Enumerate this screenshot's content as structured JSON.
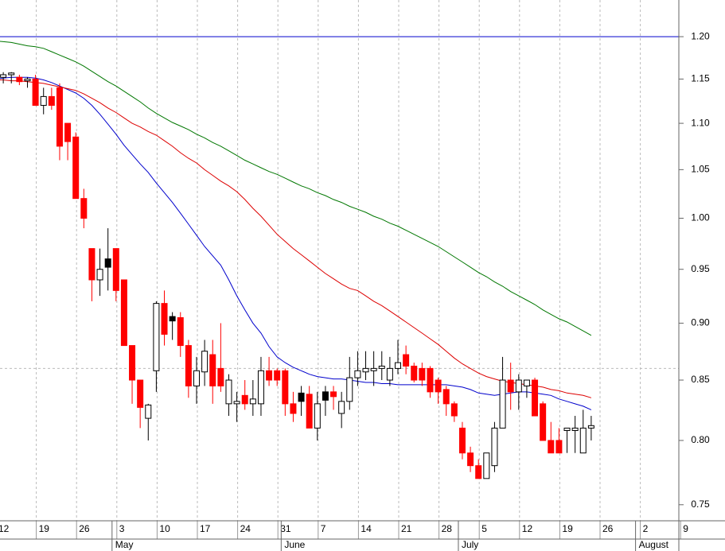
{
  "chart_data": {
    "type": "candlestick",
    "categories": [
      "12",
      null,
      null,
      null,
      null,
      "19",
      null,
      null,
      null,
      null,
      "26",
      null,
      null,
      null,
      null,
      "3",
      null,
      null,
      null,
      null,
      "10",
      null,
      null,
      null,
      null,
      "17",
      null,
      null,
      null,
      null,
      "24",
      null,
      null,
      null,
      null,
      "31",
      null,
      null,
      null,
      null,
      "7",
      null,
      null,
      null,
      null,
      "14",
      null,
      null,
      null,
      null,
      "21",
      null,
      null,
      null,
      null,
      "28",
      null,
      null,
      null,
      null,
      "5",
      null,
      null,
      null,
      null,
      "12",
      null,
      null,
      null,
      null,
      "19",
      null,
      null,
      null,
      null,
      "26",
      null,
      null,
      null,
      null,
      "2",
      null,
      null,
      null,
      null,
      "9"
    ],
    "month_labels": [
      null,
      null,
      null,
      null,
      null,
      null,
      null,
      null,
      null,
      null,
      null,
      null,
      null,
      null,
      null,
      "May",
      null,
      null,
      null,
      null,
      null,
      null,
      null,
      null,
      null,
      null,
      null,
      null,
      null,
      null,
      null,
      null,
      null,
      null,
      null,
      null,
      "June",
      null,
      null,
      null,
      null,
      null,
      null,
      null,
      null,
      null,
      null,
      null,
      null,
      null,
      null,
      null,
      null,
      null,
      null,
      null,
      null,
      null,
      "July",
      null,
      null,
      null,
      null,
      null,
      null,
      null,
      null,
      null,
      null,
      null,
      null,
      null,
      null,
      null,
      null,
      null,
      null,
      null,
      null,
      null,
      "August",
      null,
      null,
      null,
      null,
      null
    ],
    "open": [
      1.15,
      1.152,
      1.155,
      1.152,
      1.148,
      1.15,
      1.12,
      1.13,
      1.14,
      1.1,
      1.085,
      1.02,
      0.97,
      0.94,
      0.952,
      0.97,
      0.94,
      0.88,
      0.85,
      0.818,
      0.858,
      0.918,
      0.902,
      0.905,
      0.88,
      0.845,
      0.857,
      0.872,
      0.86,
      0.83,
      0.83,
      0.837,
      0.83,
      0.83,
      0.858,
      0.858,
      0.858,
      0.83,
      0.832,
      0.838,
      0.81,
      0.833,
      0.84,
      0.822,
      0.832,
      0.852,
      0.857,
      0.858,
      0.86,
      0.85,
      0.86,
      0.872,
      0.862,
      0.86,
      0.86,
      0.85,
      0.842,
      0.83,
      0.81,
      0.79,
      0.78,
      0.77,
      0.78,
      0.81,
      0.85,
      0.84,
      0.845,
      0.85,
      0.83,
      0.8,
      0.8,
      0.808,
      0.808,
      0.79,
      0.81,
      null,
      null,
      null,
      null,
      null,
      null,
      null,
      null,
      null,
      null,
      null
    ],
    "high": [
      1.155,
      1.158,
      1.158,
      1.155,
      1.152,
      1.155,
      1.14,
      1.14,
      1.145,
      1.1,
      1.09,
      1.03,
      0.97,
      0.97,
      0.99,
      0.97,
      0.94,
      0.88,
      0.85,
      0.83,
      0.92,
      0.93,
      0.91,
      0.91,
      0.885,
      0.87,
      0.885,
      0.885,
      0.9,
      0.855,
      0.84,
      0.85,
      0.85,
      0.87,
      0.87,
      0.86,
      0.86,
      0.84,
      0.845,
      0.845,
      0.84,
      0.845,
      0.845,
      0.84,
      0.87,
      0.875,
      0.875,
      0.875,
      0.875,
      0.87,
      0.885,
      0.88,
      0.865,
      0.865,
      0.862,
      0.852,
      0.845,
      0.832,
      0.815,
      0.795,
      0.785,
      0.79,
      0.815,
      0.87,
      0.865,
      0.855,
      0.85,
      0.852,
      0.832,
      0.815,
      0.81,
      0.81,
      0.82,
      0.825,
      0.82,
      null,
      null,
      null,
      null,
      null,
      null,
      null,
      null,
      null,
      null,
      null
    ],
    "low": [
      1.145,
      1.145,
      1.145,
      1.143,
      1.14,
      1.12,
      1.11,
      1.115,
      1.06,
      1.06,
      1.02,
      0.99,
      0.92,
      0.925,
      0.93,
      0.92,
      0.88,
      0.83,
      0.81,
      0.8,
      0.84,
      0.88,
      0.885,
      0.87,
      0.835,
      0.83,
      0.845,
      0.83,
      0.84,
      0.82,
      0.815,
      0.825,
      0.82,
      0.82,
      0.845,
      0.845,
      0.82,
      0.815,
      0.82,
      0.81,
      0.8,
      0.82,
      0.825,
      0.81,
      0.825,
      0.845,
      0.85,
      0.845,
      0.85,
      0.845,
      0.855,
      0.855,
      0.848,
      0.845,
      0.835,
      0.83,
      0.82,
      0.815,
      0.785,
      0.775,
      0.77,
      0.77,
      0.775,
      0.81,
      0.825,
      0.825,
      0.835,
      0.82,
      0.8,
      0.79,
      0.79,
      0.79,
      0.79,
      0.79,
      0.8,
      null,
      null,
      null,
      null,
      null,
      null,
      null,
      null,
      null,
      null,
      null
    ],
    "close": [
      1.152,
      1.155,
      1.157,
      1.147,
      1.15,
      1.12,
      1.13,
      1.12,
      1.075,
      1.08,
      1.02,
      1.0,
      0.94,
      0.95,
      0.96,
      0.93,
      0.88,
      0.85,
      0.827,
      0.829,
      0.918,
      0.89,
      0.906,
      0.88,
      0.845,
      0.858,
      0.875,
      0.845,
      0.845,
      0.85,
      0.832,
      0.83,
      0.834,
      0.858,
      0.85,
      0.85,
      0.83,
      0.822,
      0.839,
      0.81,
      0.83,
      0.84,
      0.836,
      0.832,
      0.852,
      0.858,
      0.86,
      0.86,
      0.862,
      0.86,
      0.865,
      0.862,
      0.85,
      0.85,
      0.84,
      0.84,
      0.83,
      0.82,
      0.79,
      0.78,
      0.77,
      0.79,
      0.81,
      0.85,
      0.84,
      0.85,
      0.85,
      0.82,
      0.8,
      0.79,
      0.79,
      0.81,
      0.81,
      0.81,
      0.812,
      null,
      null,
      null,
      null,
      null,
      null,
      null,
      null,
      null,
      null,
      null
    ],
    "colors": [
      "#ffffff",
      "#ffffff",
      "#ffffff",
      "#ff0000",
      "#ffffff",
      "#ff0000",
      "#ffffff",
      "#ff0000",
      "#ff0000",
      "#ff0000",
      "#ff0000",
      "#ff0000",
      "#ff0000",
      "#ffffff",
      "#000000",
      "#ff0000",
      "#ff0000",
      "#ff0000",
      "#ff0000",
      "#ffffff",
      "#ffffff",
      "#ff0000",
      "#000000",
      "#ff0000",
      "#ff0000",
      "#ffffff",
      "#ffffff",
      "#ff0000",
      "#ff0000",
      "#ffffff",
      "#ffffff",
      "#ff0000",
      "#ffffff",
      "#ffffff",
      "#ff0000",
      "#ff0000",
      "#ff0000",
      "#ff0000",
      "#000000",
      "#ff0000",
      "#ffffff",
      "#000000",
      "#ff0000",
      "#ffffff",
      "#ffffff",
      "#ffffff",
      "#ffffff",
      "#ffffff",
      "#ffffff",
      "#ffffff",
      "#ffffff",
      "#ff0000",
      "#ff0000",
      "#ff0000",
      "#ff0000",
      "#ff0000",
      "#ff0000",
      "#ff0000",
      "#ff0000",
      "#ff0000",
      "#ff0000",
      "#ffffff",
      "#ffffff",
      "#ffffff",
      "#ff0000",
      "#ffffff",
      "#ffffff",
      "#ff0000",
      "#ff0000",
      "#ff0000",
      "#ff0000",
      "#ffffff",
      "#ffffff",
      "#ffffff",
      "#ffffff",
      null,
      null,
      null,
      null,
      null,
      null,
      null,
      null,
      null,
      null,
      null
    ],
    "lines": [
      {
        "color": "#0000cc",
        "values": [
          1.15,
          1.151,
          1.152,
          1.152,
          1.152,
          1.151,
          1.149,
          1.146,
          1.142,
          1.138,
          1.134,
          1.128,
          1.12,
          1.11,
          1.099,
          1.088,
          1.076,
          1.066,
          1.056,
          1.047,
          1.036,
          1.026,
          1.016,
          1.005,
          0.994,
          0.983,
          0.972,
          0.963,
          0.954,
          0.94,
          0.925,
          0.912,
          0.9,
          0.891,
          0.879,
          0.87,
          0.865,
          0.861,
          0.858,
          0.855,
          0.853,
          0.852,
          0.851,
          0.851,
          0.85,
          0.849,
          0.848,
          0.848,
          0.847,
          0.847,
          0.846,
          0.846,
          0.846,
          0.846,
          0.846,
          0.846,
          0.846,
          0.845,
          0.844,
          0.842,
          0.839,
          0.838,
          0.837,
          0.838,
          0.839,
          0.84,
          0.84,
          0.839,
          0.838,
          0.837,
          0.834,
          0.832,
          0.83,
          0.828,
          0.825,
          null,
          null,
          null,
          null,
          null,
          null,
          null,
          null,
          null,
          null,
          null
        ]
      },
      {
        "color": "#dd0000",
        "values": [
          1.149,
          1.149,
          1.148,
          1.148,
          1.147,
          1.146,
          1.145,
          1.143,
          1.141,
          1.139,
          1.137,
          1.133,
          1.128,
          1.123,
          1.117,
          1.112,
          1.106,
          1.1,
          1.096,
          1.091,
          1.087,
          1.081,
          1.075,
          1.068,
          1.062,
          1.057,
          1.05,
          1.044,
          1.038,
          1.033,
          1.027,
          1.019,
          1.01,
          1.002,
          0.993,
          0.984,
          0.977,
          0.97,
          0.964,
          0.958,
          0.952,
          0.946,
          0.941,
          0.936,
          0.932,
          0.93,
          0.925,
          0.92,
          0.916,
          0.911,
          0.906,
          0.901,
          0.896,
          0.891,
          0.886,
          0.881,
          0.875,
          0.869,
          0.864,
          0.86,
          0.856,
          0.853,
          0.851,
          0.849,
          0.848,
          0.847,
          0.846,
          0.845,
          0.844,
          0.842,
          0.841,
          0.839,
          0.838,
          0.837,
          0.835,
          null,
          null,
          null,
          null,
          null,
          null,
          null,
          null,
          null,
          null,
          null
        ]
      },
      {
        "color": "#007700",
        "values": [
          1.195,
          1.194,
          1.193,
          1.191,
          1.189,
          1.188,
          1.186,
          1.182,
          1.178,
          1.174,
          1.17,
          1.165,
          1.159,
          1.153,
          1.147,
          1.142,
          1.136,
          1.13,
          1.124,
          1.117,
          1.111,
          1.106,
          1.101,
          1.097,
          1.093,
          1.088,
          1.084,
          1.079,
          1.075,
          1.07,
          1.065,
          1.06,
          1.056,
          1.052,
          1.048,
          1.045,
          1.041,
          1.037,
          1.033,
          1.03,
          1.026,
          1.023,
          1.019,
          1.016,
          1.012,
          1.009,
          1.006,
          1.002,
          0.999,
          0.995,
          0.992,
          0.988,
          0.984,
          0.98,
          0.976,
          0.972,
          0.967,
          0.962,
          0.957,
          0.952,
          0.947,
          0.943,
          0.938,
          0.934,
          0.929,
          0.925,
          0.921,
          0.917,
          0.912,
          0.908,
          0.904,
          0.901,
          0.897,
          0.893,
          0.889,
          null,
          null,
          null,
          null,
          null,
          null,
          null,
          null,
          null,
          null,
          null
        ]
      }
    ],
    "hlines": [
      {
        "value": 1.2,
        "color": "#0000cc",
        "dashed": false
      },
      {
        "value": 0.86,
        "color": "#bbbbbb",
        "dashed": true
      }
    ],
    "ylim": [
      0.738,
      1.245
    ],
    "log_scale": true,
    "grid": true,
    "yticks": [
      0.75,
      {
        "value": 0.8,
        "label": "0.80"
      },
      0.85,
      {
        "value": 0.9,
        "label": "0.90"
      },
      0.95,
      {
        "value": 1.0,
        "label": "1.00"
      },
      1.05,
      {
        "value": 1.1,
        "label": "1.10"
      },
      1.15,
      {
        "value": 1.2,
        "label": "1.20"
      }
    ]
  }
}
